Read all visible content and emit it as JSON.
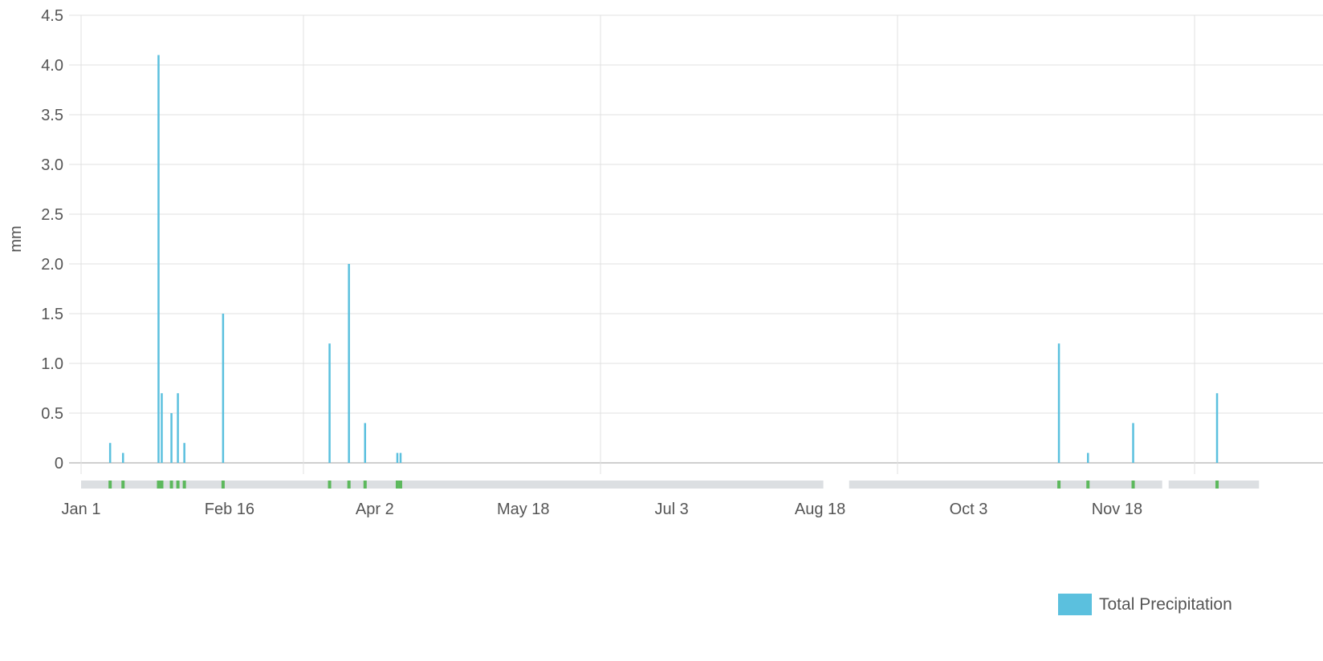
{
  "chart_data": {
    "type": "bar",
    "ylabel": "mm",
    "ylim": [
      0,
      4.5
    ],
    "y_ticks": [
      "0",
      "0.5",
      "1.0",
      "1.5",
      "2.0",
      "2.5",
      "3.0",
      "3.5",
      "4.0",
      "4.5"
    ],
    "x_ticks": [
      "Jan 1",
      "Feb 16",
      "Apr 2",
      "May 18",
      "Jul 3",
      "Aug 18",
      "Oct 3",
      "Nov 18"
    ],
    "grid": true,
    "legend_position": "bottom-right",
    "series": [
      {
        "name": "Total Precipitation",
        "color": "#5bc0de",
        "points": [
          {
            "x": "Jan 10",
            "y": 0.2
          },
          {
            "x": "Jan 14",
            "y": 0.1
          },
          {
            "x": "Jan 25",
            "y": 4.1
          },
          {
            "x": "Jan 26",
            "y": 0.7
          },
          {
            "x": "Jan 29",
            "y": 0.5
          },
          {
            "x": "Jan 31",
            "y": 0.7
          },
          {
            "x": "Feb 2",
            "y": 0.2
          },
          {
            "x": "Feb 14",
            "y": 1.5
          },
          {
            "x": "Mar 19",
            "y": 1.2
          },
          {
            "x": "Mar 25",
            "y": 2.0
          },
          {
            "x": "Mar 30",
            "y": 0.4
          },
          {
            "x": "Apr 9",
            "y": 0.1
          },
          {
            "x": "Apr 10",
            "y": 0.1
          },
          {
            "x": "Oct 31",
            "y": 1.2
          },
          {
            "x": "Nov 9",
            "y": 0.1
          },
          {
            "x": "Nov 23",
            "y": 0.4
          },
          {
            "x": "Dec 19",
            "y": 0.7
          }
        ]
      }
    ],
    "coverage_bar": {
      "segments": [
        {
          "start": "Jan 1",
          "end": "Aug 18"
        },
        {
          "start": "Aug 27",
          "end": "Dec 1"
        },
        {
          "start": "Dec 4",
          "end": "Dec 31"
        }
      ],
      "marker_color": "#5cb85c",
      "track_color": "#dcdfe2"
    }
  }
}
